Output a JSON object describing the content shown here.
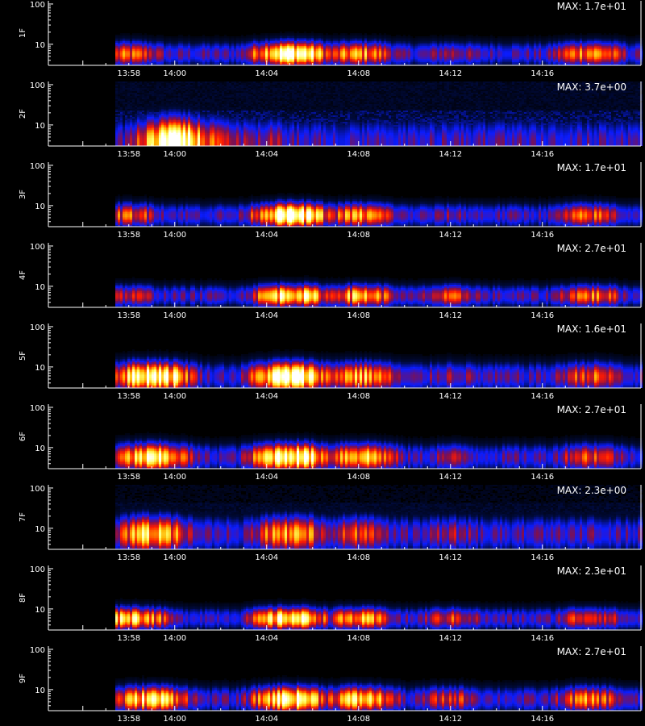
{
  "colors": {
    "background": "#000000",
    "axis": "#ffffff",
    "colormap": [
      "#000000",
      "#000a3c",
      "#0b1cff",
      "#7d1050",
      "#ff1a00",
      "#ffb300",
      "#ffff66",
      "#ffffff"
    ]
  },
  "chart_data": [
    {
      "type": "heatmap",
      "ylabel": "1F",
      "max_text": "MAX: 1.7e+01",
      "max_value": 17,
      "ylim": [
        3,
        120
      ],
      "yscale": "log",
      "y_ticks": [
        "100",
        "10"
      ],
      "x_ticks": [
        "13:58",
        "14:00",
        "14:04",
        "14:08",
        "14:12",
        "14:16"
      ],
      "band_center": 6.0,
      "band_width": 0.28,
      "noise_floor": 0.0,
      "hotspots": [
        {
          "t": "13:58",
          "level": 0.6
        },
        {
          "t": "14:05",
          "level": 1.0
        },
        {
          "t": "14:08",
          "level": 0.7
        },
        {
          "t": "14:12",
          "level": 0.45
        },
        {
          "t": "14:18",
          "level": 0.7
        }
      ]
    },
    {
      "type": "heatmap",
      "ylabel": "2F",
      "max_text": "MAX: 3.7e+00",
      "max_value": 3.7,
      "ylim": [
        3,
        120
      ],
      "yscale": "log",
      "y_ticks": [
        "100",
        "10"
      ],
      "x_ticks": [
        "13:58",
        "14:00",
        "14:04",
        "14:08",
        "14:12",
        "14:16"
      ],
      "band_center": 3.8,
      "band_width": 0.55,
      "noise_floor": 0.18,
      "hotspots": [
        {
          "t": "14:00",
          "level": 1.0
        },
        {
          "t": "14:02",
          "level": 0.5
        },
        {
          "t": "14:04",
          "level": 0.45
        },
        {
          "t": "14:08",
          "level": 0.2
        },
        {
          "t": "14:14",
          "level": 0.15
        }
      ]
    },
    {
      "type": "heatmap",
      "ylabel": "3F",
      "max_text": "MAX: 1.7e+01",
      "max_value": 17,
      "ylim": [
        3,
        120
      ],
      "yscale": "log",
      "y_ticks": [
        "100",
        "10"
      ],
      "x_ticks": [
        "13:58",
        "14:00",
        "14:04",
        "14:08",
        "14:12",
        "14:16"
      ],
      "band_center": 6.0,
      "band_width": 0.28,
      "noise_floor": 0.0,
      "hotspots": [
        {
          "t": "13:58",
          "level": 0.6
        },
        {
          "t": "14:05",
          "level": 1.0
        },
        {
          "t": "14:08",
          "level": 0.7
        },
        {
          "t": "14:12",
          "level": 0.4
        },
        {
          "t": "14:18",
          "level": 0.6
        }
      ]
    },
    {
      "type": "heatmap",
      "ylabel": "4F",
      "max_text": "MAX: 2.7e+01",
      "max_value": 27,
      "ylim": [
        3,
        120
      ],
      "yscale": "log",
      "y_ticks": [
        "100",
        "10"
      ],
      "x_ticks": [
        "13:58",
        "14:00",
        "14:04",
        "14:08",
        "14:12",
        "14:16"
      ],
      "band_center": 6.0,
      "band_width": 0.26,
      "noise_floor": 0.0,
      "hotspots": [
        {
          "t": "13:58",
          "level": 0.5
        },
        {
          "t": "14:05",
          "level": 0.9
        },
        {
          "t": "14:08",
          "level": 0.75
        },
        {
          "t": "14:12",
          "level": 0.55
        },
        {
          "t": "14:18",
          "level": 0.65
        }
      ]
    },
    {
      "type": "heatmap",
      "ylabel": "5F",
      "max_text": "MAX: 1.6e+01",
      "max_value": 16,
      "ylim": [
        3,
        120
      ],
      "yscale": "log",
      "y_ticks": [
        "100",
        "10"
      ],
      "x_ticks": [
        "13:58",
        "14:00",
        "14:04",
        "14:08",
        "14:12",
        "14:16"
      ],
      "band_center": 6.0,
      "band_width": 0.34,
      "noise_floor": 0.0,
      "hotspots": [
        {
          "t": "13:59",
          "level": 1.0
        },
        {
          "t": "14:05",
          "level": 1.0
        },
        {
          "t": "14:08",
          "level": 0.75
        },
        {
          "t": "14:12",
          "level": 0.45
        },
        {
          "t": "14:18",
          "level": 0.6
        }
      ]
    },
    {
      "type": "heatmap",
      "ylabel": "6F",
      "max_text": "MAX: 2.7e+01",
      "max_value": 27,
      "ylim": [
        3,
        120
      ],
      "yscale": "log",
      "y_ticks": [
        "100",
        "10"
      ],
      "x_ticks": [
        "13:58",
        "14:00",
        "14:04",
        "14:08",
        "14:12",
        "14:16"
      ],
      "band_center": 6.0,
      "band_width": 0.32,
      "noise_floor": 0.0,
      "hotspots": [
        {
          "t": "13:59",
          "level": 0.85
        },
        {
          "t": "14:05",
          "level": 1.0
        },
        {
          "t": "14:08",
          "level": 0.8
        },
        {
          "t": "14:12",
          "level": 0.45
        },
        {
          "t": "14:18",
          "level": 0.6
        }
      ]
    },
    {
      "type": "heatmap",
      "ylabel": "7F",
      "max_text": "MAX: 2.3e+00",
      "max_value": 2.3,
      "ylim": [
        3,
        120
      ],
      "yscale": "log",
      "y_ticks": [
        "100",
        "10"
      ],
      "x_ticks": [
        "13:58",
        "14:00",
        "14:04",
        "14:08",
        "14:12",
        "14:16"
      ],
      "band_center": 7.5,
      "band_width": 0.42,
      "noise_floor": 0.12,
      "hotspots": [
        {
          "t": "13:59",
          "level": 0.8
        },
        {
          "t": "14:05",
          "level": 0.75
        },
        {
          "t": "14:08",
          "level": 0.6
        },
        {
          "t": "14:12",
          "level": 0.45
        },
        {
          "t": "14:18",
          "level": 0.4
        }
      ]
    },
    {
      "type": "heatmap",
      "ylabel": "8F",
      "max_text": "MAX: 2.3e+01",
      "max_value": 23,
      "ylim": [
        3,
        120
      ],
      "yscale": "log",
      "y_ticks": [
        "100",
        "10"
      ],
      "x_ticks": [
        "13:58",
        "14:00",
        "14:04",
        "14:08",
        "14:12",
        "14:16"
      ],
      "band_center": 6.0,
      "band_width": 0.26,
      "noise_floor": 0.0,
      "hotspots": [
        {
          "t": "13:58",
          "level": 0.85
        },
        {
          "t": "14:05",
          "level": 0.9
        },
        {
          "t": "14:08",
          "level": 0.7
        },
        {
          "t": "14:12",
          "level": 0.55
        },
        {
          "t": "14:18",
          "level": 0.6
        }
      ]
    },
    {
      "type": "heatmap",
      "ylabel": "9F",
      "max_text": "MAX: 2.7e+01",
      "max_value": 27,
      "ylim": [
        3,
        120
      ],
      "yscale": "log",
      "y_ticks": [
        "100",
        "10"
      ],
      "x_ticks": [
        "13:58",
        "14:00",
        "14:04",
        "14:08",
        "14:12",
        "14:16"
      ],
      "band_center": 6.0,
      "band_width": 0.3,
      "noise_floor": 0.0,
      "hotspots": [
        {
          "t": "13:59",
          "level": 0.85
        },
        {
          "t": "14:05",
          "level": 0.95
        },
        {
          "t": "14:08",
          "level": 0.8
        },
        {
          "t": "14:12",
          "level": 0.55
        },
        {
          "t": "14:18",
          "level": 0.65
        }
      ]
    }
  ]
}
